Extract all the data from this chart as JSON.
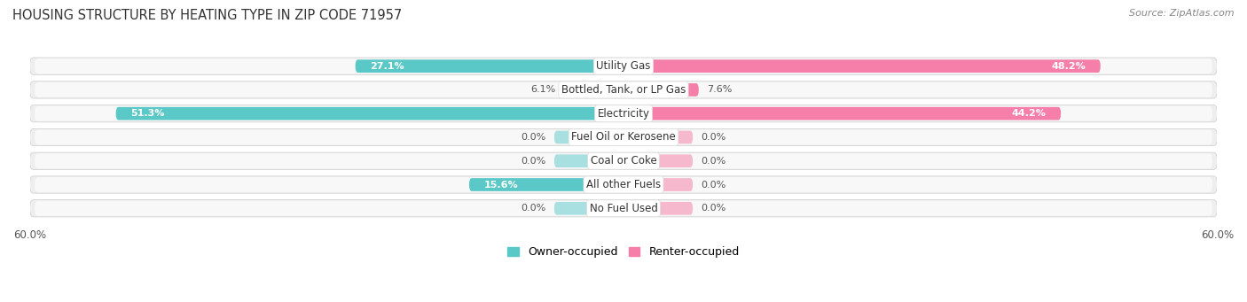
{
  "title": "HOUSING STRUCTURE BY HEATING TYPE IN ZIP CODE 71957",
  "source": "Source: ZipAtlas.com",
  "categories": [
    "Utility Gas",
    "Bottled, Tank, or LP Gas",
    "Electricity",
    "Fuel Oil or Kerosene",
    "Coal or Coke",
    "All other Fuels",
    "No Fuel Used"
  ],
  "owner_values": [
    27.1,
    6.1,
    51.3,
    0.0,
    0.0,
    15.6,
    0.0
  ],
  "renter_values": [
    48.2,
    7.6,
    44.2,
    0.0,
    0.0,
    0.0,
    0.0
  ],
  "owner_color": "#5BC8C8",
  "owner_color_light": "#A8DFE0",
  "renter_color": "#F57FA8",
  "renter_color_light": "#F5B8CC",
  "row_bg_color": "#EAEAEA",
  "row_inner_color": "#F5F5F5",
  "axis_max": 60.0,
  "min_bar_pct": 7.0,
  "title_fontsize": 10.5,
  "source_fontsize": 8,
  "label_fontsize": 8.5,
  "value_fontsize": 8,
  "legend_fontsize": 9,
  "axis_label_fontsize": 8.5
}
